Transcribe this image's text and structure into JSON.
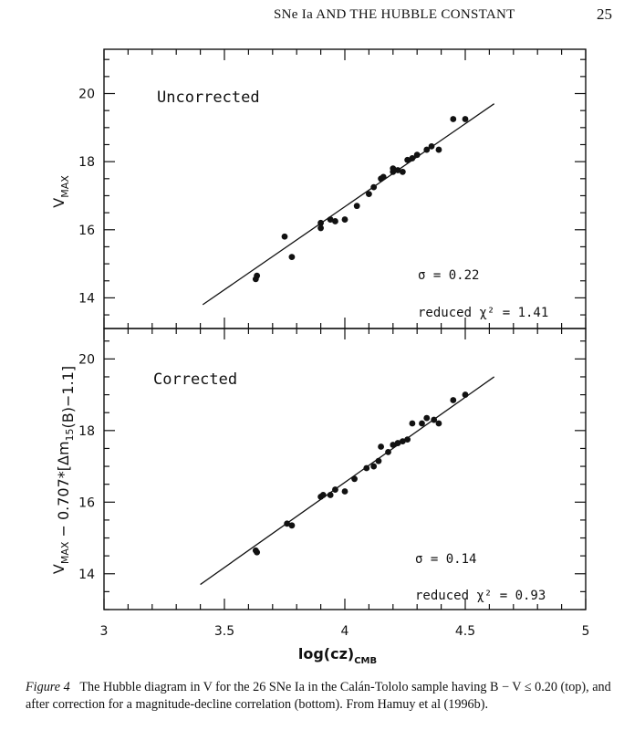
{
  "running_head": {
    "title": "SNe Ia AND THE HUBBLE CONSTANT",
    "page_number": "25"
  },
  "caption": {
    "label": "Figure 4",
    "text": "The Hubble diagram in V for the 26 SNe Ia in the Calán-Tololo sample having B − V ≤ 0.20 (top), and after correction for a magnitude-decline correlation (bottom). From Hamuy et al (1996b)."
  },
  "chart_data": [
    {
      "type": "scatter",
      "panel": "top",
      "title": "Uncorrected",
      "ylabel": "V_MAX",
      "xlabel": "log(cz)_CMB",
      "xlim": [
        3,
        5
      ],
      "ylim": [
        13.1,
        21.3
      ],
      "yticks": [
        14,
        16,
        18,
        20
      ],
      "xticks": [
        3,
        3.5,
        4,
        4.5,
        5
      ],
      "annotations": [
        "σ  = 0.22",
        "reduced χ² = 1.41"
      ],
      "points": [
        [
          3.63,
          14.55
        ],
        [
          3.635,
          14.65
        ],
        [
          3.75,
          15.8
        ],
        [
          3.78,
          15.2
        ],
        [
          3.9,
          16.2
        ],
        [
          3.9,
          16.05
        ],
        [
          3.94,
          16.3
        ],
        [
          3.96,
          16.25
        ],
        [
          4.0,
          16.3
        ],
        [
          4.05,
          16.7
        ],
        [
          4.1,
          17.05
        ],
        [
          4.12,
          17.25
        ],
        [
          4.15,
          17.5
        ],
        [
          4.16,
          17.55
        ],
        [
          4.2,
          17.7
        ],
        [
          4.2,
          17.8
        ],
        [
          4.22,
          17.75
        ],
        [
          4.24,
          17.7
        ],
        [
          4.26,
          18.05
        ],
        [
          4.28,
          18.1
        ],
        [
          4.3,
          18.2
        ],
        [
          4.34,
          18.35
        ],
        [
          4.36,
          18.45
        ],
        [
          4.39,
          18.35
        ],
        [
          4.45,
          19.25
        ],
        [
          4.5,
          19.25
        ]
      ],
      "fit_line": {
        "x": [
          3.41,
          4.62
        ],
        "y": [
          13.8,
          19.7
        ]
      }
    },
    {
      "type": "scatter",
      "panel": "bottom",
      "title": "Corrected",
      "ylabel": "V_MAX − 0.707*[Δm15(B)−1.1]",
      "xlabel": "log(cz)_CMB",
      "xlim": [
        3,
        5
      ],
      "ylim": [
        13.0,
        20.85
      ],
      "yticks": [
        14,
        16,
        18,
        20
      ],
      "xticks": [
        3,
        3.5,
        4,
        4.5,
        5
      ],
      "annotations": [
        "σ  = 0.14",
        "reduced χ² = 0.93"
      ],
      "points": [
        [
          3.63,
          14.65
        ],
        [
          3.635,
          14.6
        ],
        [
          3.76,
          15.4
        ],
        [
          3.78,
          15.35
        ],
        [
          3.9,
          16.15
        ],
        [
          3.91,
          16.2
        ],
        [
          3.94,
          16.2
        ],
        [
          3.96,
          16.35
        ],
        [
          4.0,
          16.3
        ],
        [
          4.04,
          16.65
        ],
        [
          4.09,
          16.95
        ],
        [
          4.12,
          17.0
        ],
        [
          4.14,
          17.15
        ],
        [
          4.15,
          17.55
        ],
        [
          4.18,
          17.4
        ],
        [
          4.2,
          17.6
        ],
        [
          4.22,
          17.65
        ],
        [
          4.24,
          17.7
        ],
        [
          4.26,
          17.75
        ],
        [
          4.28,
          18.2
        ],
        [
          4.32,
          18.2
        ],
        [
          4.34,
          18.35
        ],
        [
          4.37,
          18.3
        ],
        [
          4.39,
          18.2
        ],
        [
          4.45,
          18.85
        ],
        [
          4.5,
          19.0
        ]
      ],
      "fit_line": {
        "x": [
          3.4,
          4.62
        ],
        "y": [
          13.7,
          19.5
        ]
      }
    }
  ]
}
